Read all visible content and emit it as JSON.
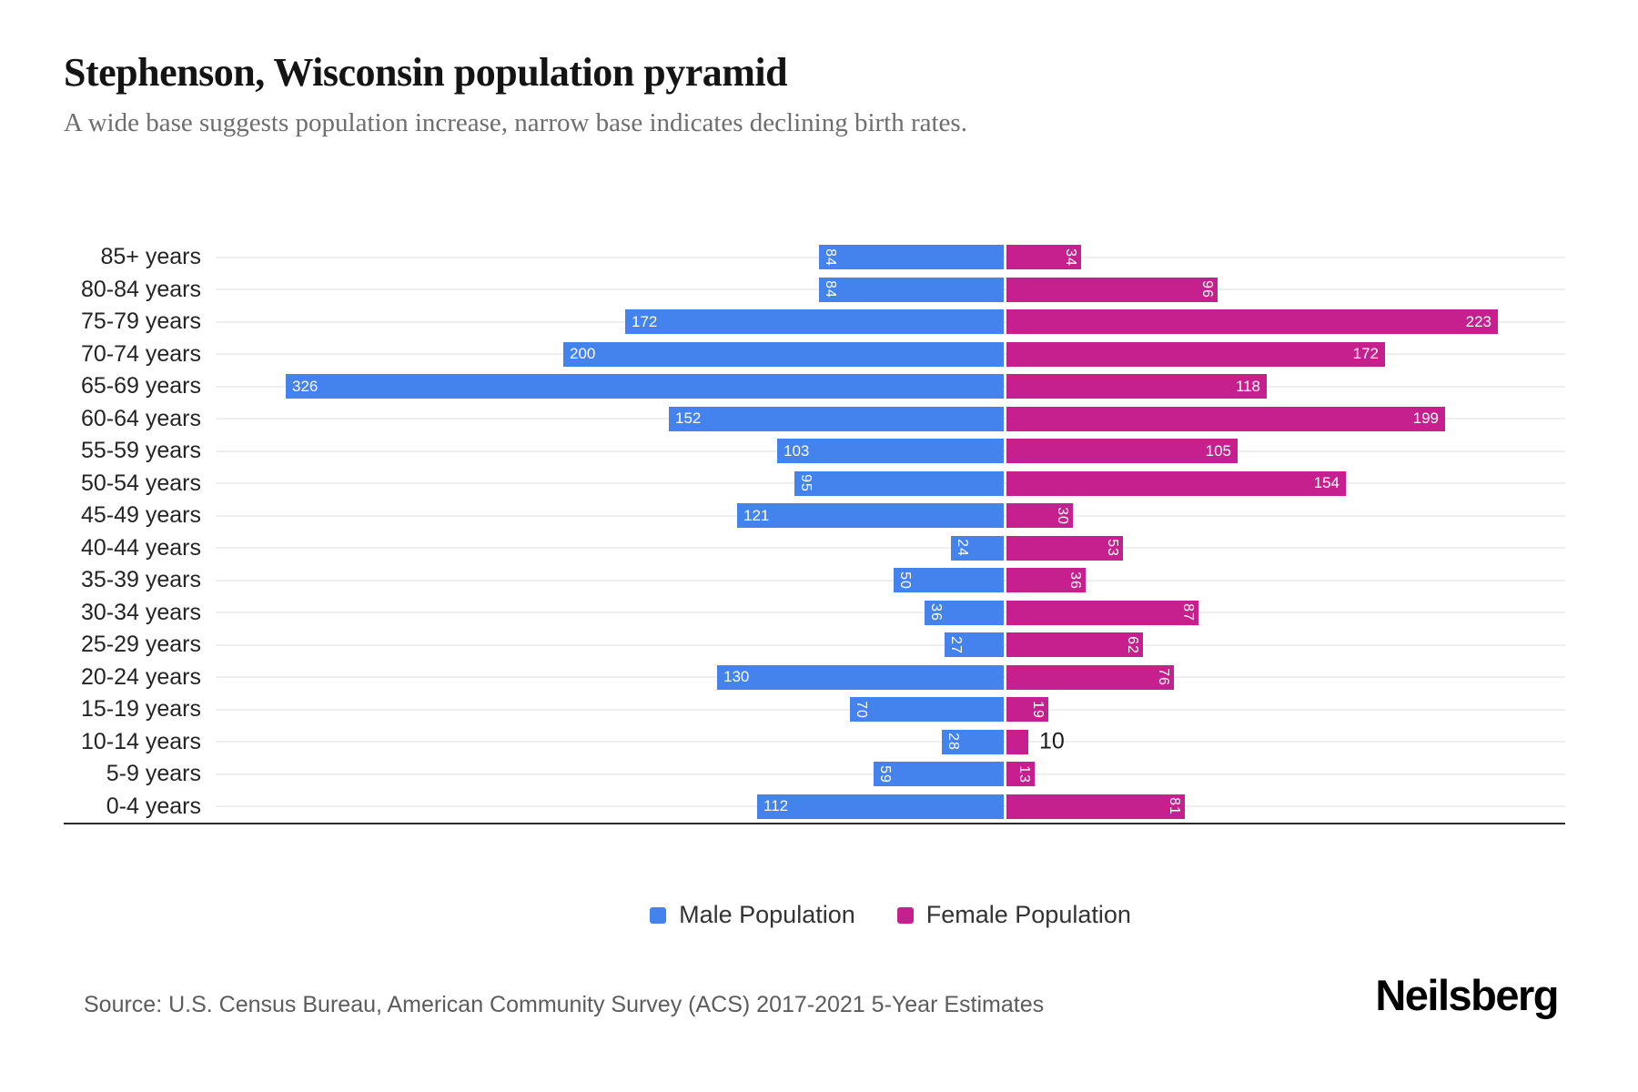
{
  "header": {
    "title": "Stephenson, Wisconsin population pyramid",
    "subtitle": "A wide base suggests population increase, narrow base indicates declining birth rates."
  },
  "chart_data": {
    "type": "bar",
    "variant": "population-pyramid",
    "orientation": "horizontal",
    "categories": [
      "85+ years",
      "80-84 years",
      "75-79 years",
      "70-74 years",
      "65-69 years",
      "60-64 years",
      "55-59 years",
      "50-54 years",
      "45-49 years",
      "40-44 years",
      "35-39 years",
      "30-34 years",
      "25-29 years",
      "20-24 years",
      "15-19 years",
      "10-14 years",
      "5-9 years",
      "0-4 years"
    ],
    "series": [
      {
        "name": "Male Population",
        "side": "left",
        "color": "#4483ED",
        "values": [
          84,
          84,
          172,
          200,
          326,
          152,
          103,
          95,
          121,
          24,
          50,
          36,
          27,
          130,
          70,
          28,
          59,
          112
        ]
      },
      {
        "name": "Female Population",
        "side": "right",
        "color": "#C5208E",
        "values": [
          34,
          96,
          223,
          172,
          118,
          199,
          105,
          154,
          30,
          53,
          36,
          87,
          62,
          76,
          19,
          10,
          13,
          81
        ]
      }
    ],
    "axis": {
      "ticks_visible": false,
      "left_extent_max": 358,
      "right_extent_max": 253
    },
    "grid": "light horizontal line at each row center",
    "gridline_color": "#efefef",
    "baseline_color": "#2b2b2b",
    "inside_label_color": "#ffffff",
    "outside_label_color": "#1a1a1a",
    "legend_position": "bottom-center"
  },
  "footer": {
    "source": "Source: U.S. Census Bureau, American Community Survey (ACS) 2017-2021 5-Year Estimates",
    "brand": "Neilsberg"
  }
}
